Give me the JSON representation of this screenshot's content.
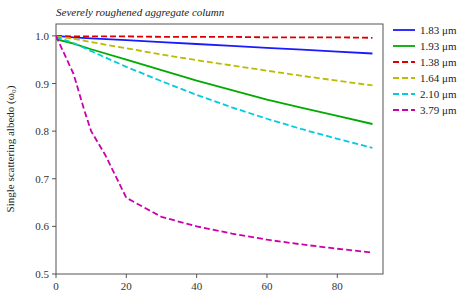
{
  "chart_data": {
    "type": "line",
    "ylabel": "Single scattering albedo (ω₀)",
    "annotation": "Severely roughened aggregate column",
    "xlim": [
      0,
      93
    ],
    "ylim": [
      0.5,
      1.025
    ],
    "xticks": [
      0,
      20,
      40,
      60,
      80
    ],
    "yticks": [
      0.5,
      0.6,
      0.7,
      0.8,
      0.9,
      {
        "value": 1.0,
        "label": "1.0"
      }
    ],
    "grid": false,
    "legend": "right",
    "series": [
      {
        "name": "1.83 μm",
        "color": "#1a1aff",
        "line_style": "solid",
        "x": [
          0,
          5,
          10,
          20,
          30,
          40,
          50,
          60,
          70,
          80,
          90
        ],
        "values": [
          1.0,
          0.997,
          0.995,
          0.991,
          0.987,
          0.983,
          0.979,
          0.975,
          0.971,
          0.967,
          0.963
        ]
      },
      {
        "name": "1.93 μm",
        "color": "#00aa00",
        "line_style": "solid",
        "x": [
          0,
          5,
          10,
          20,
          30,
          40,
          50,
          60,
          70,
          80,
          90
        ],
        "values": [
          0.993,
          0.984,
          0.972,
          0.95,
          0.928,
          0.906,
          0.886,
          0.866,
          0.849,
          0.832,
          0.815
        ]
      },
      {
        "name": "1.38 μm",
        "color": "#dd0000",
        "line_style": "dashed",
        "x": [
          0,
          5,
          10,
          20,
          30,
          40,
          50,
          60,
          70,
          80,
          90
        ],
        "values": [
          1.0,
          0.999,
          0.999,
          0.999,
          0.998,
          0.998,
          0.998,
          0.997,
          0.997,
          0.997,
          0.996
        ]
      },
      {
        "name": "1.64 μm",
        "color": "#bbbb00",
        "line_style": "dashed",
        "x": [
          0,
          5,
          10,
          20,
          30,
          40,
          50,
          60,
          70,
          80,
          90
        ],
        "values": [
          0.999,
          0.994,
          0.987,
          0.974,
          0.961,
          0.949,
          0.938,
          0.927,
          0.916,
          0.906,
          0.896
        ]
      },
      {
        "name": "2.10 μm",
        "color": "#00ccdd",
        "line_style": "dashed",
        "x": [
          0,
          5,
          10,
          20,
          30,
          40,
          50,
          60,
          70,
          80,
          90
        ],
        "values": [
          0.998,
          0.985,
          0.968,
          0.935,
          0.905,
          0.876,
          0.85,
          0.826,
          0.804,
          0.784,
          0.765
        ]
      },
      {
        "name": "3.79 μm",
        "color": "#cc00aa",
        "line_style": "dashed",
        "x": [
          0,
          5,
          8,
          10,
          14,
          20,
          30,
          40,
          50,
          60,
          70,
          80,
          90
        ],
        "values": [
          1.0,
          0.92,
          0.845,
          0.8,
          0.75,
          0.66,
          0.62,
          0.6,
          0.585,
          0.572,
          0.562,
          0.553,
          0.545
        ]
      }
    ]
  }
}
